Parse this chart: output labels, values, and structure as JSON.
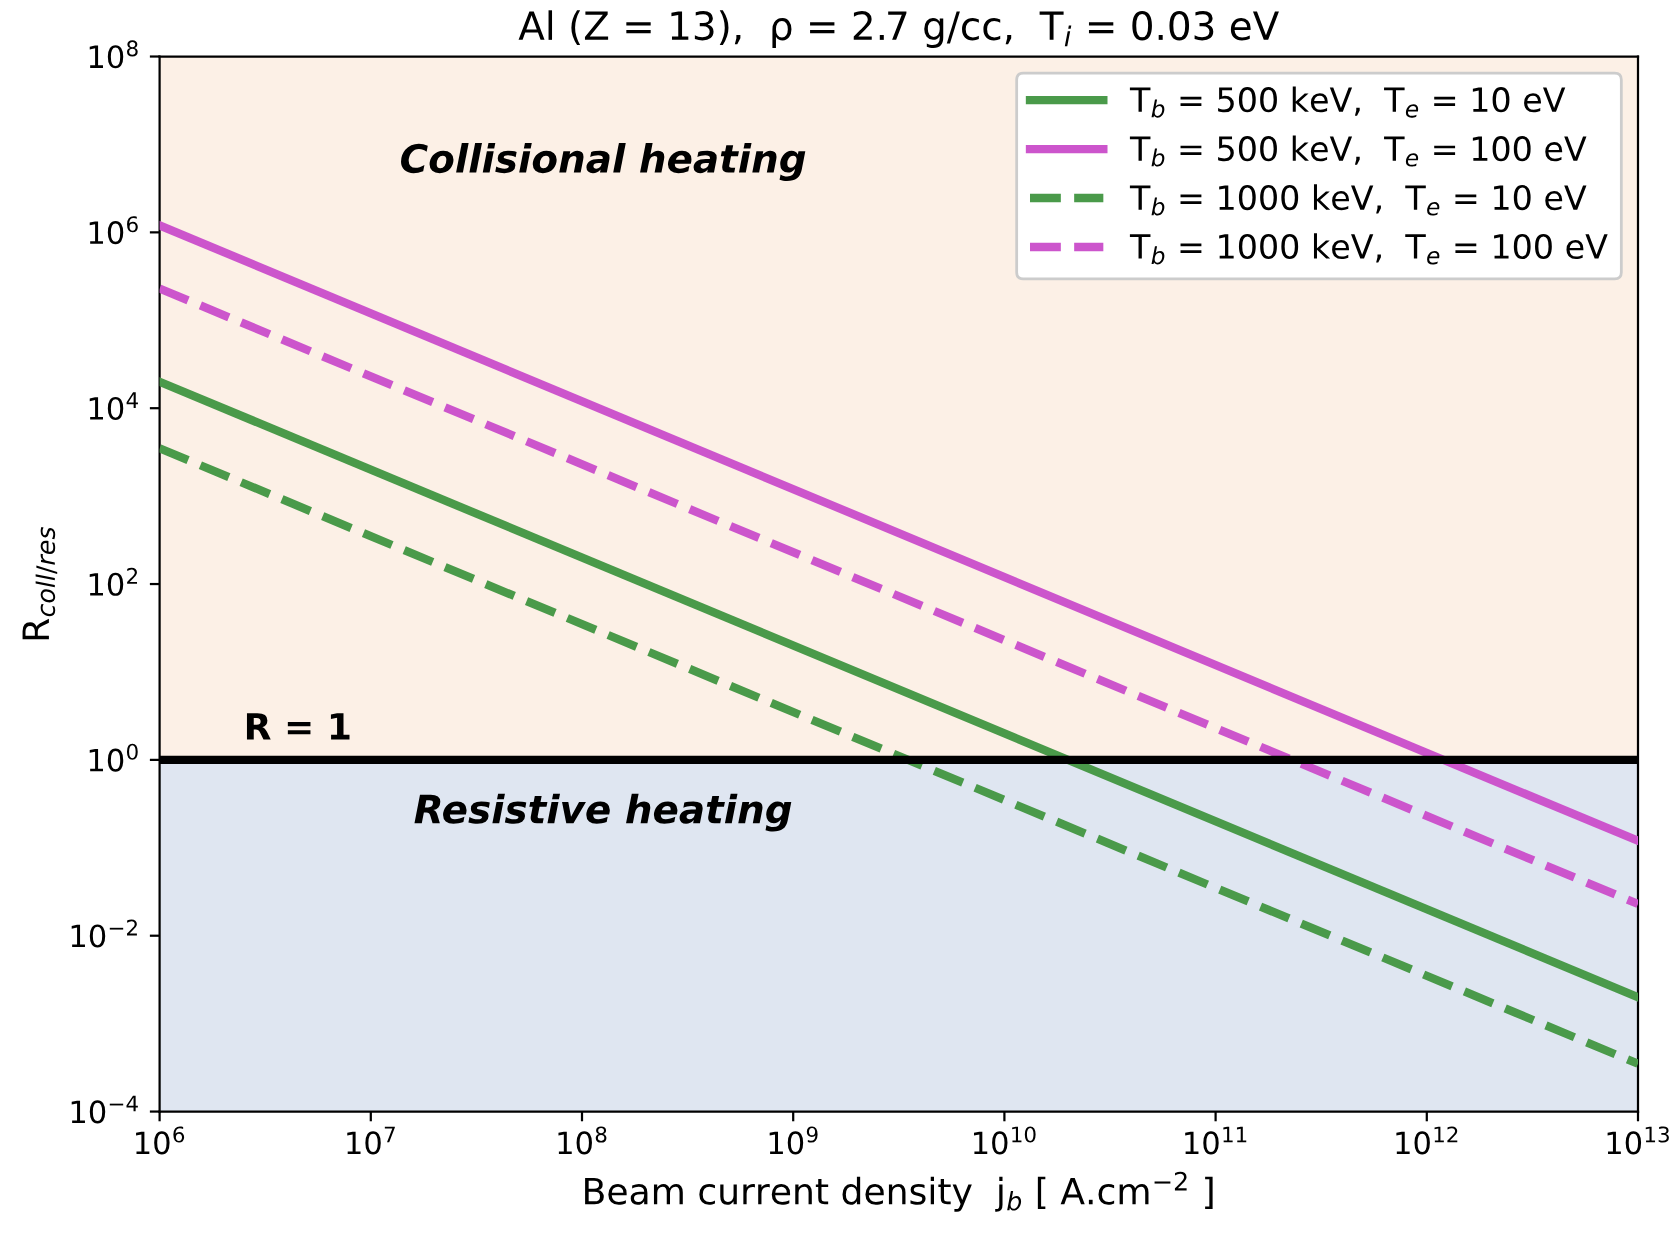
{
  "chart_data": {
    "type": "line",
    "title": "Al (Z = 13),  ρ = 2.7 g/cc,  T$_{i}$ = 0.03 eV",
    "xlabel": "Beam current density  j$_{b}$ [ A.cm$^{−2}$ ]",
    "ylabel": "R$_{coll/res}$",
    "log": "xy",
    "xlim": [
      1000000.0,
      10000000000000.0
    ],
    "ylim": [
      0.0001,
      100000000.0
    ],
    "xticks": [
      {
        "value": 1000000.0,
        "label": "10$^{6}$"
      },
      {
        "value": 10000000.0,
        "label": "10$^{7}$"
      },
      {
        "value": 100000000.0,
        "label": "10$^{8}$"
      },
      {
        "value": 1000000000.0,
        "label": "10$^{9}$"
      },
      {
        "value": 10000000000.0,
        "label": "10$^{10}$"
      },
      {
        "value": 100000000000.0,
        "label": "10$^{11}$"
      },
      {
        "value": 1000000000000.0,
        "label": "10$^{12}$"
      },
      {
        "value": 10000000000000.0,
        "label": "10$^{13}$"
      }
    ],
    "yticks": [
      {
        "value": 0.0001,
        "label": "10$^{−4}$"
      },
      {
        "value": 0.01,
        "label": "10$^{−2}$"
      },
      {
        "value": 1,
        "label": "10$^{0}$"
      },
      {
        "value": 100,
        "label": "10$^{2}$"
      },
      {
        "value": 10000.0,
        "label": "10$^{4}$"
      },
      {
        "value": 1000000.0,
        "label": "10$^{6}$"
      },
      {
        "value": 100000000.0,
        "label": "10$^{8}$"
      }
    ],
    "x": [
      1000000.0,
      10000000000000.0
    ],
    "series": [
      {
        "name": "T$_{b}$ = 500 keV,  T$_{e}$ = 10 eV",
        "color": "#4a9a4a",
        "values": [
          20000.0,
          0.002
        ],
        "line_style": "solid"
      },
      {
        "name": "T$_{b}$ = 500 keV,  T$_{e}$ = 100 eV",
        "color": "#cc55cc",
        "values": [
          1200000.0,
          0.12
        ],
        "line_style": "solid"
      },
      {
        "name": "T$_{b}$ = 1000 keV,  T$_{e}$ = 10 eV",
        "color": "#4a9a4a",
        "values": [
          3500.0,
          0.00035
        ],
        "line_style": "dashed"
      },
      {
        "name": "T$_{b}$ = 1000 keV,  T$_{e}$ = 100 eV",
        "color": "#cc55cc",
        "values": [
          230000.0,
          0.023
        ],
        "line_style": "dashed"
      }
    ],
    "ref_lines": [
      {
        "axis": "y",
        "value": 1,
        "label": "R = 1",
        "color": "#000000"
      }
    ],
    "bands": [
      {
        "axis": "y",
        "from": 1,
        "to": 100000000.0,
        "label": "Collisional heating",
        "color": "#fcf0e6"
      },
      {
        "axis": "y",
        "from": 0.0001,
        "to": 1,
        "label": "Resistive heating",
        "color": "#dfe6f1"
      }
    ],
    "grid": false,
    "legend": "top right",
    "marker": "none"
  }
}
